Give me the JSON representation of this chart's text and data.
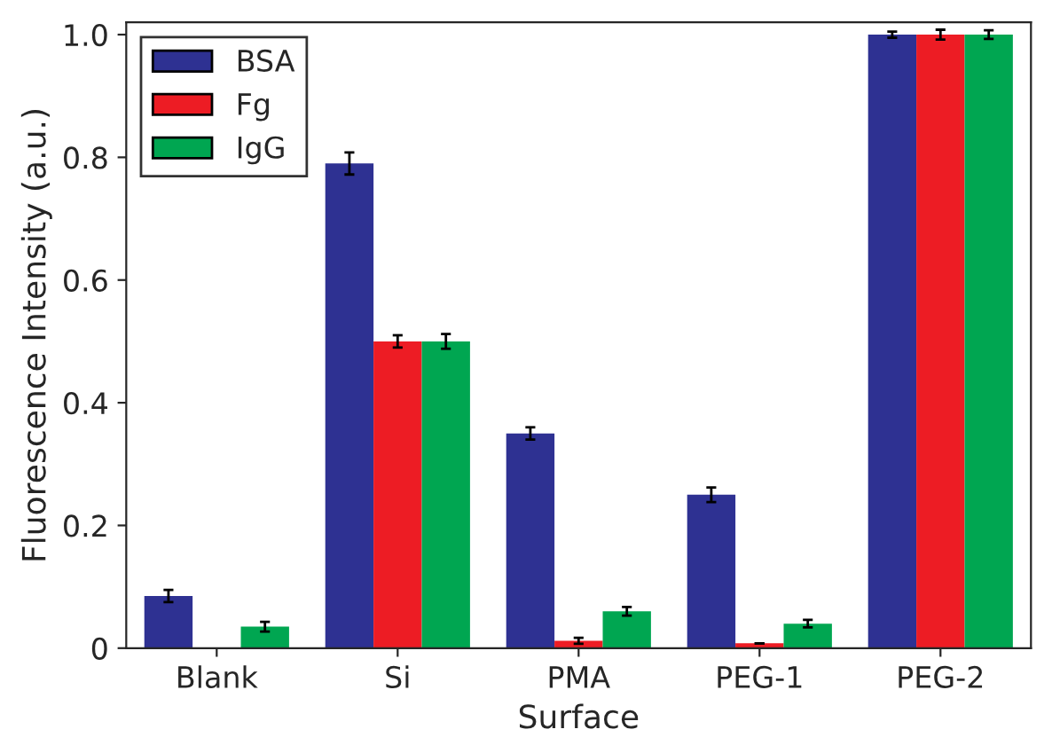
{
  "chart_data": {
    "type": "bar",
    "xlabel": "Surface",
    "ylabel": "Fluorescence Intensity (a.u.)",
    "categories": [
      "Blank",
      "Si",
      "PMA",
      "PEG-1",
      "PEG-2"
    ],
    "series": [
      {
        "name": "BSA",
        "color": "#2e3192",
        "values": [
          0.085,
          0.79,
          0.35,
          0.25,
          1.0
        ],
        "errors": [
          0.01,
          0.018,
          0.01,
          0.012,
          0.005
        ]
      },
      {
        "name": "Fg",
        "color": "#ed1c24",
        "values": [
          null,
          0.5,
          0.012,
          0.008,
          1.0
        ],
        "errors": [
          null,
          0.01,
          0.005,
          null,
          0.008
        ]
      },
      {
        "name": "IgG",
        "color": "#00a651",
        "values": [
          0.035,
          0.5,
          0.06,
          0.04,
          1.0
        ],
        "errors": [
          0.008,
          0.012,
          0.007,
          0.006,
          0.007
        ]
      }
    ],
    "ylim": [
      0,
      1.02
    ],
    "yticks": [
      0,
      {
        "value": 0.2,
        "label": "0.2"
      },
      {
        "value": 0.4,
        "label": "0.4"
      },
      {
        "value": 0.6,
        "label": "0.6"
      },
      {
        "value": 0.8,
        "label": "0.8"
      },
      {
        "value": 1.0,
        "label": "1.0"
      }
    ],
    "legend": "top left",
    "grid": false
  }
}
